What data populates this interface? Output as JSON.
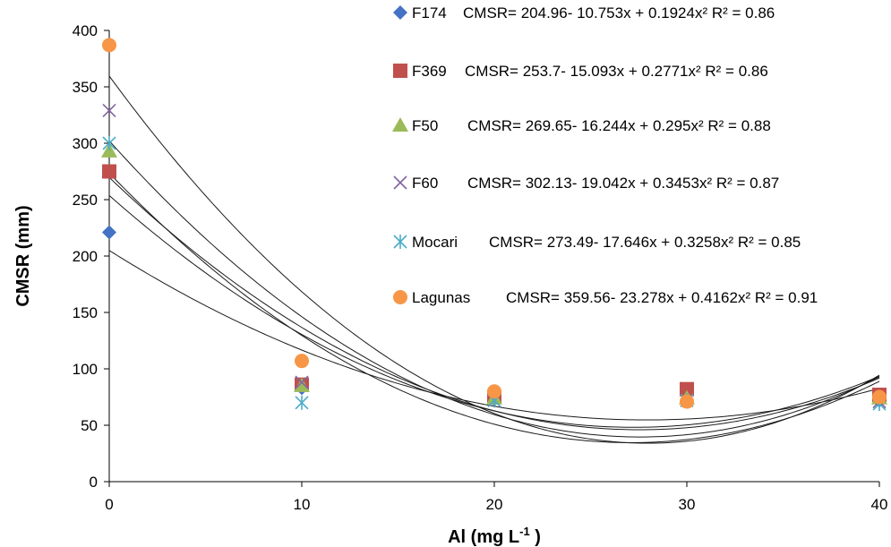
{
  "chart_data": {
    "type": "scatter",
    "title": "",
    "xlabel": "Al (mg L",
    "xlabel_sup": "-1",
    "xlabel_close": " )",
    "ylabel": "CMSR (mm)",
    "xlim": [
      0,
      40
    ],
    "ylim": [
      0,
      400
    ],
    "xticks": [
      0,
      10,
      20,
      30,
      40
    ],
    "yticks": [
      0,
      50,
      100,
      150,
      200,
      250,
      300,
      350,
      400
    ],
    "grid": false,
    "legend_position": "top-right",
    "curve_color": "#1a1a1a",
    "series": [
      {
        "name": "F174",
        "marker": "diamond",
        "color": "#4472C4",
        "x": [
          0,
          10,
          20,
          30,
          40
        ],
        "y": [
          221,
          83,
          73,
          77,
          72
        ],
        "equation": "CMSR= 204.96- 10.753x + 0.1924x² R² = 0.86",
        "fit": [
          204.96,
          -10.753,
          0.1924
        ]
      },
      {
        "name": "F369",
        "marker": "square",
        "color": "#C0504D",
        "x": [
          0,
          10,
          20,
          30,
          40
        ],
        "y": [
          275,
          86,
          75,
          82,
          77
        ],
        "equation": "CMSR= 253.7- 15.093x + 0.2771x² R² = 0.86",
        "fit": [
          253.7,
          -15.093,
          0.2771
        ]
      },
      {
        "name": "F50",
        "marker": "triangle",
        "color": "#9BBB59",
        "x": [
          0,
          10,
          20,
          30,
          40
        ],
        "y": [
          293,
          85,
          74,
          74,
          74
        ],
        "equation": "CMSR= 269.65- 16.244x + 0.295x² R² = 0.88",
        "fit": [
          269.65,
          -16.244,
          0.295
        ]
      },
      {
        "name": "F60",
        "marker": "x",
        "color": "#8064A2",
        "x": [
          0,
          10,
          20,
          30,
          40
        ],
        "y": [
          329,
          88,
          72,
          72,
          71
        ],
        "equation": "CMSR= 302.13- 19.042x + 0.3453x² R² = 0.87",
        "fit": [
          302.13,
          -19.042,
          0.3453
        ]
      },
      {
        "name": "Mocari",
        "marker": "star",
        "color": "#4BACC6",
        "x": [
          0,
          10,
          20,
          30,
          40
        ],
        "y": [
          300,
          70,
          72,
          72,
          69
        ],
        "equation": "CMSR= 273.49- 17.646x + 0.3258x² R² = 0.85",
        "fit": [
          273.49,
          -17.646,
          0.3258
        ]
      },
      {
        "name": "Lagunas",
        "marker": "circle",
        "color": "#F79646",
        "x": [
          0,
          10,
          20,
          30,
          40
        ],
        "y": [
          387,
          107,
          80,
          71,
          75
        ],
        "equation": "CMSR= 359.56- 23.278x + 0.4162x² R² = 0.91",
        "fit": [
          359.56,
          -23.278,
          0.4162
        ]
      }
    ]
  }
}
